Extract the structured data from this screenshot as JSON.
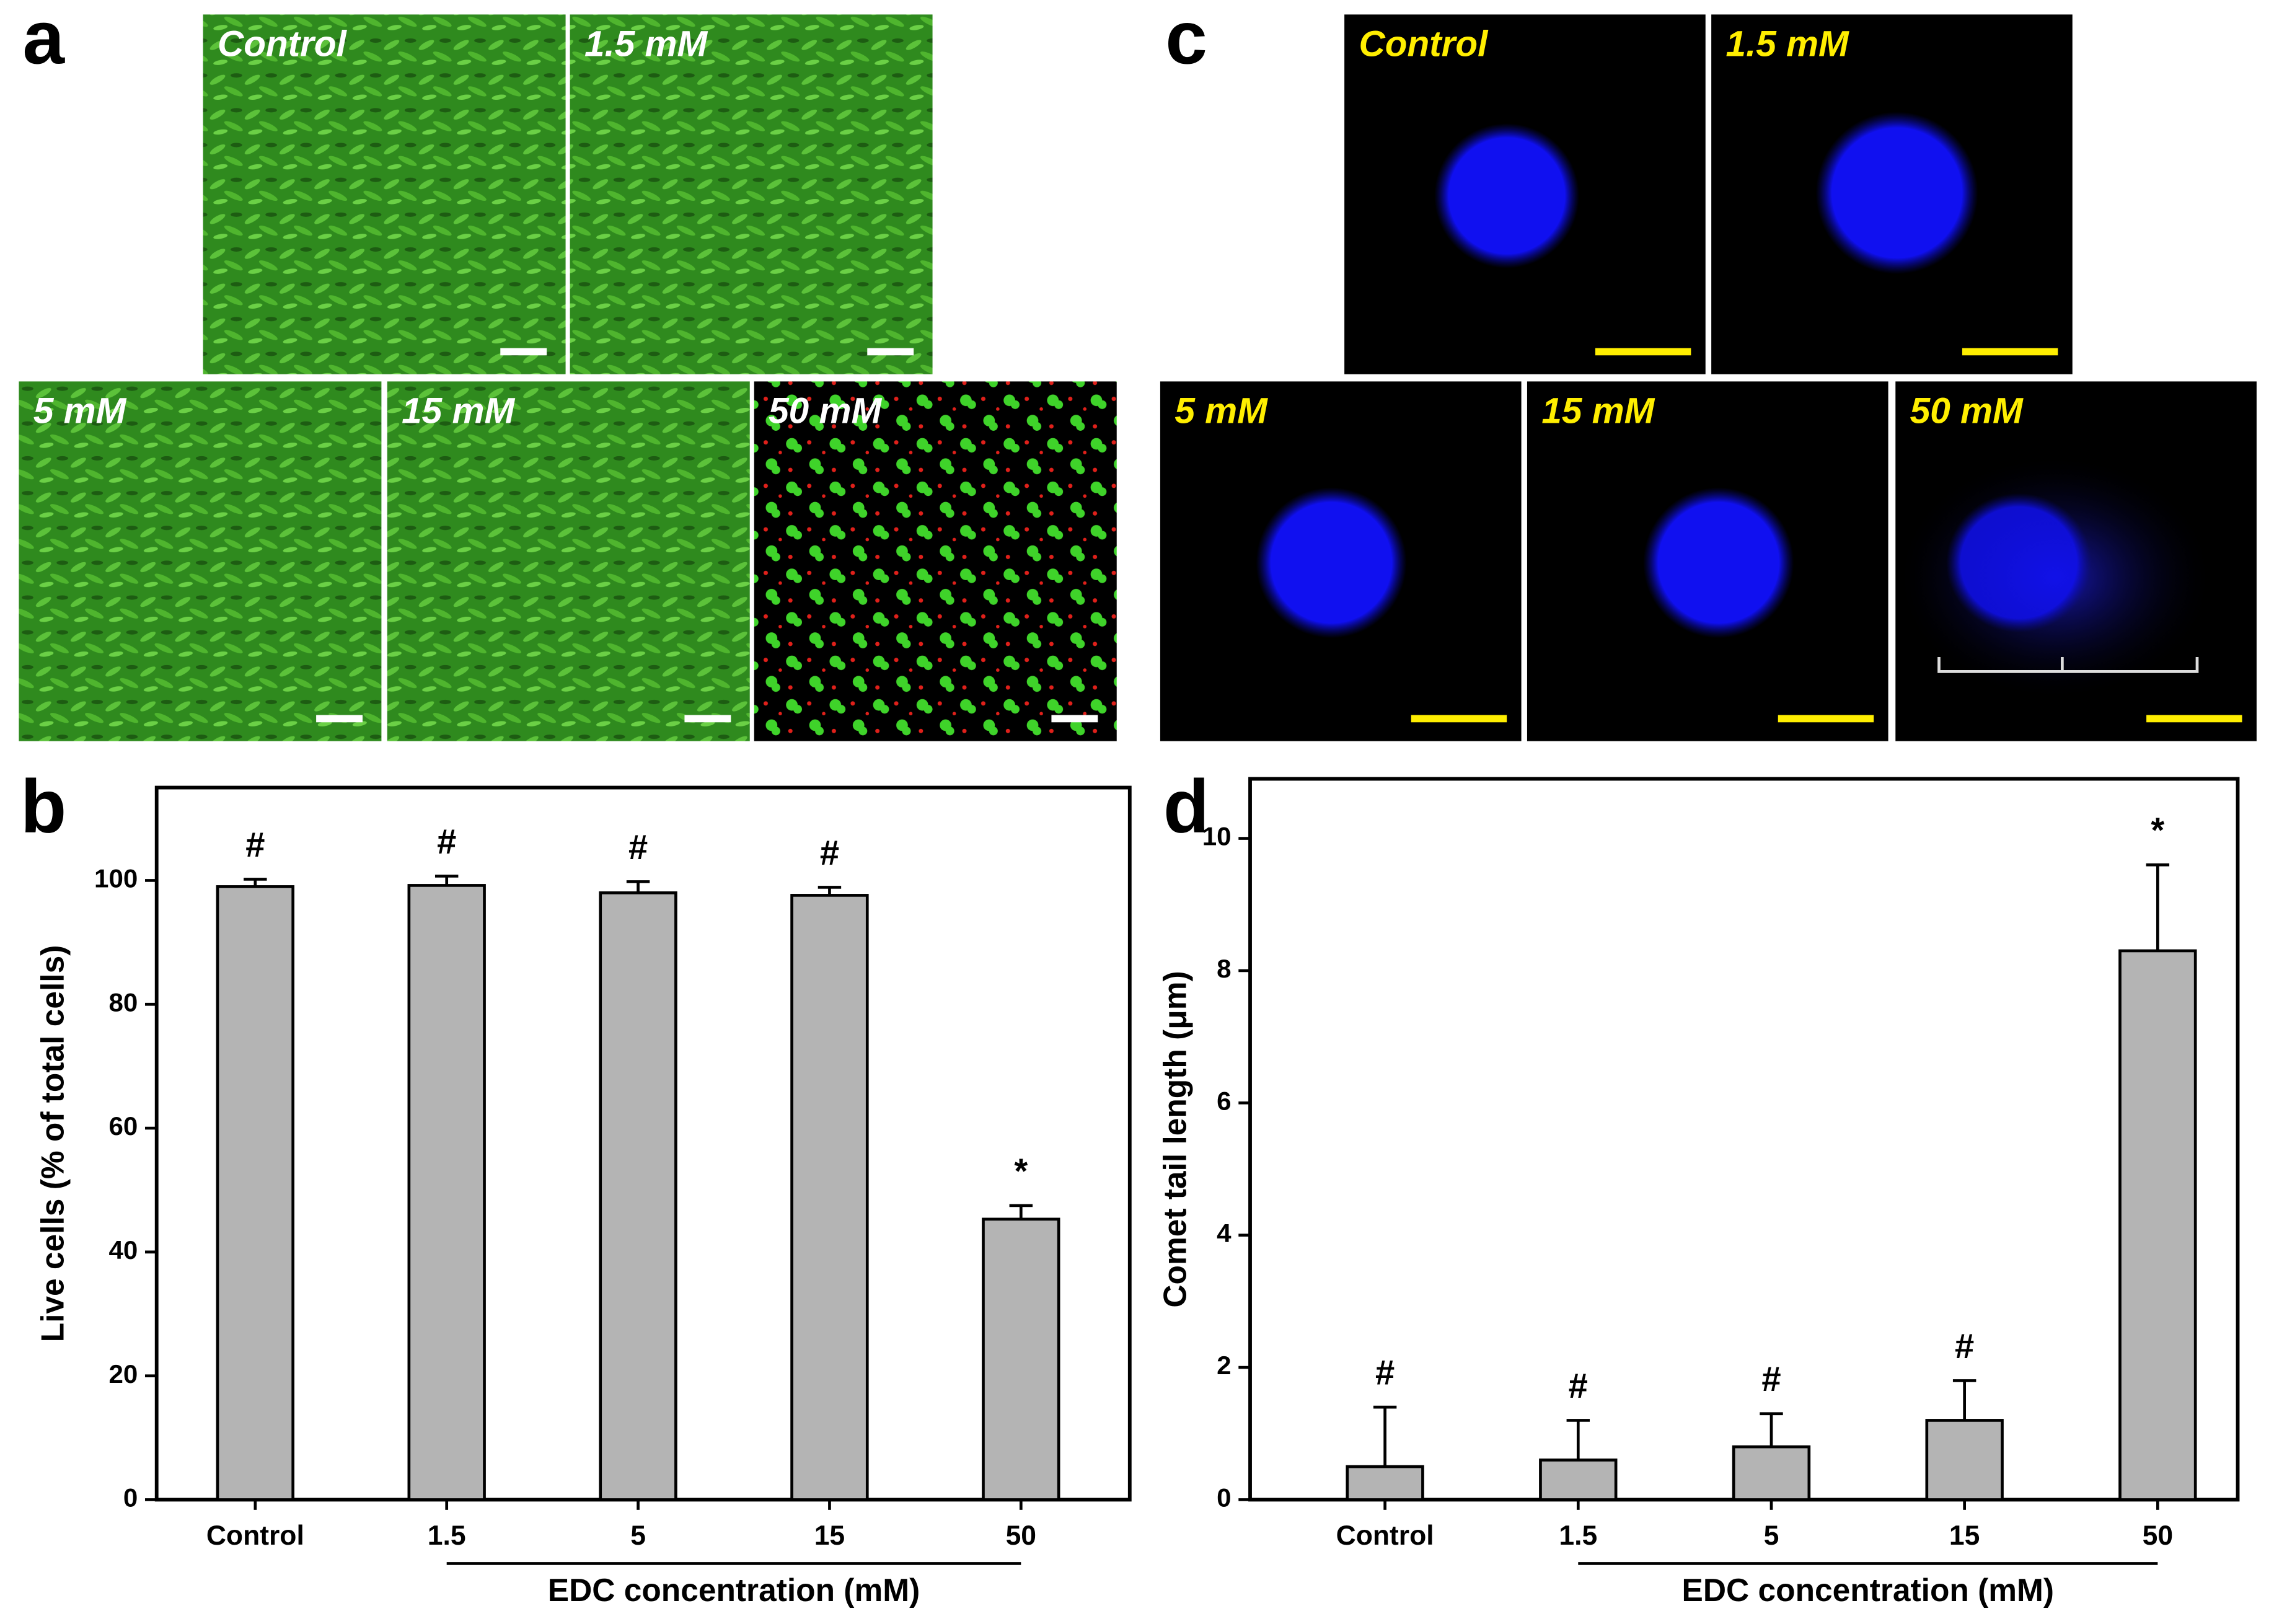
{
  "panel_labels": [
    "a",
    "b",
    "c",
    "d"
  ],
  "micrographs": {
    "live_dead": [
      "Control",
      "1.5 mM",
      "5 mM",
      "15 mM",
      "50 mM"
    ],
    "comet": [
      "Control",
      "1.5 mM",
      "5 mM",
      "15 mM",
      "50 mM"
    ]
  },
  "chart_data": [
    {
      "type": "bar",
      "y_label": "Live cells (% of total cells)",
      "x_label": "EDC concentration (mM)",
      "categories": [
        "Control",
        "1.5",
        "5",
        "15",
        "50"
      ],
      "values": [
        99,
        99.2,
        98,
        97.6,
        45.3
      ],
      "errors": [
        1.2,
        1.5,
        1.8,
        1.3,
        2.2
      ],
      "annotations": [
        "#",
        "#",
        "#",
        "#",
        "*"
      ],
      "color": "#b4b4b4",
      "ylim": [
        0,
        115
      ],
      "yticks": [
        0,
        20,
        40,
        60,
        80,
        100
      ]
    },
    {
      "type": "bar",
      "y_label": "Comet tail length (μm)",
      "x_label": "EDC concentration (mM)",
      "categories": [
        "Control",
        "1.5",
        "5",
        "15",
        "50"
      ],
      "values": [
        0.5,
        0.6,
        0.8,
        1.2,
        8.3
      ],
      "errors": [
        0.9,
        0.6,
        0.5,
        0.6,
        1.3
      ],
      "annotations": [
        "#",
        "#",
        "#",
        "#",
        "*"
      ],
      "color": "#b4b4b4",
      "ylim": [
        0,
        10.9
      ],
      "yticks": [
        0,
        2,
        4,
        6,
        8,
        10
      ]
    }
  ]
}
